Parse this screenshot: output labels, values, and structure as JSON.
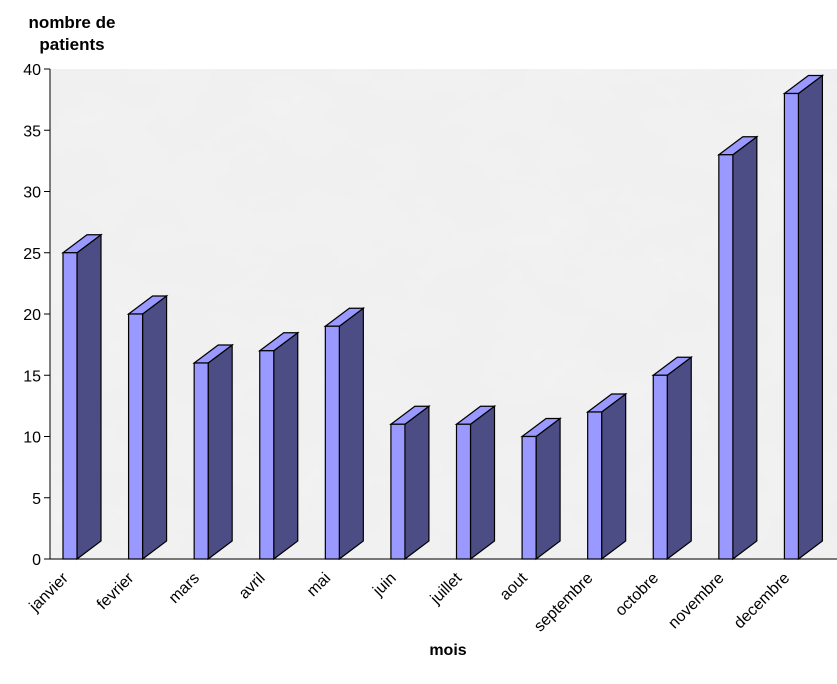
{
  "chart_data": {
    "type": "bar3d",
    "y_label": "nombre de patients",
    "x_label": "mois",
    "categories": [
      "janvier",
      "fevrier",
      "mars",
      "avril",
      "mai",
      "juin",
      "juillet",
      "aout",
      "septembre",
      "octobre",
      "novembre",
      "decembre"
    ],
    "values": [
      25,
      20,
      16,
      17,
      19,
      11,
      11,
      10,
      12,
      15,
      33,
      38
    ],
    "color": "#9999ff",
    "side_color": "#4d4d85",
    "ylim": [
      0,
      40
    ],
    "yticks": [
      0,
      5,
      10,
      15,
      20,
      25,
      30,
      35,
      40
    ]
  }
}
